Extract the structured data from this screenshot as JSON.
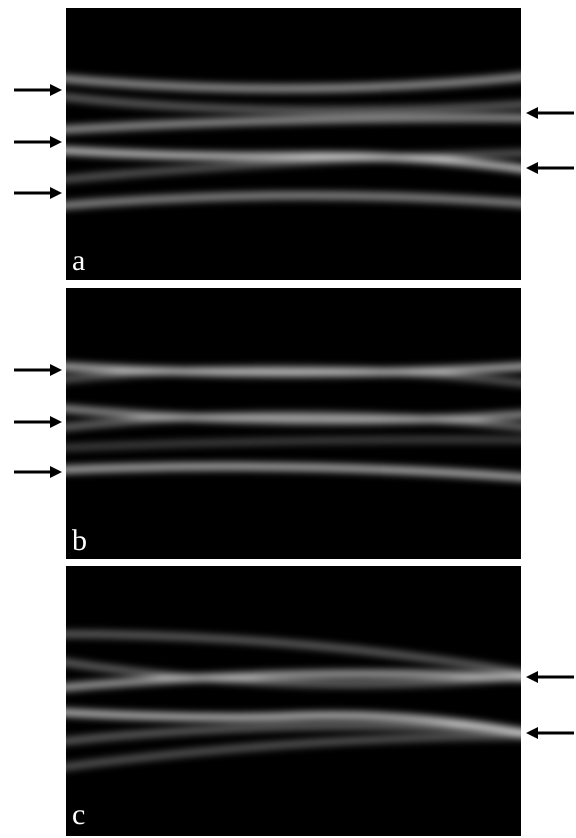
{
  "panels": [
    {
      "label": "a"
    },
    {
      "label": "b"
    },
    {
      "label": "c"
    }
  ]
}
